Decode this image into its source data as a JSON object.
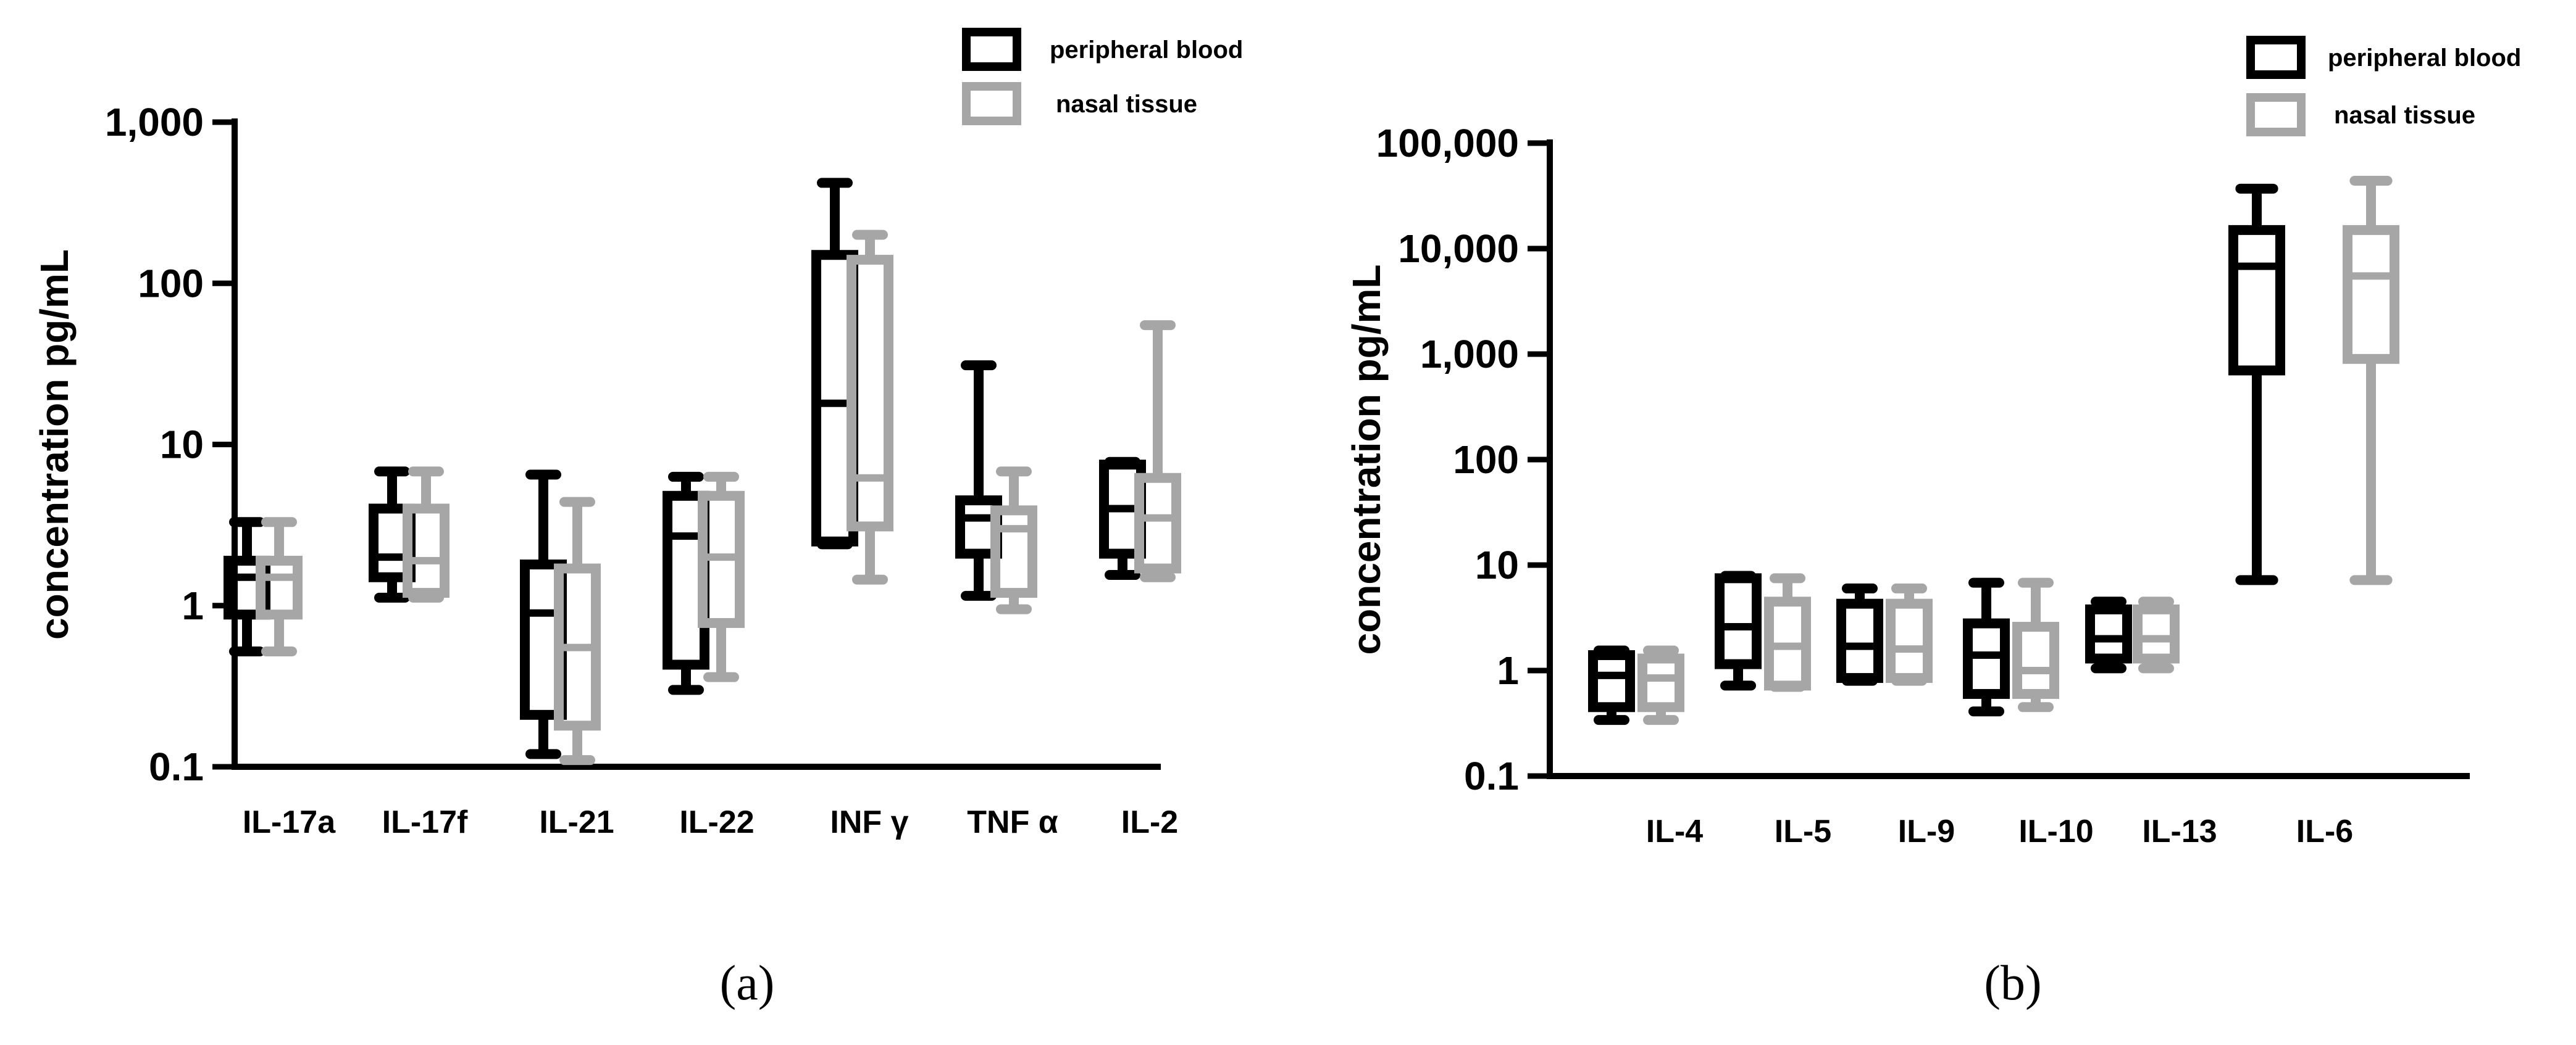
{
  "chart_data": [
    {
      "id": "a",
      "type": "boxplot",
      "yscale": "log",
      "ylim": [
        0.1,
        1000
      ],
      "ylabel": "concentration pg/mL",
      "yticks": [
        "0.1",
        "1",
        "10",
        "100",
        "1,000"
      ],
      "ytick_values": [
        0.1,
        1,
        10,
        100,
        1000
      ],
      "caption": "(a)",
      "legend": [
        {
          "name": "peripheral blood",
          "color": "#000000"
        },
        {
          "name": "nasal tissue",
          "color": "#a6a6a6"
        }
      ],
      "categories": [
        "IL-17a",
        "IL-17f",
        "IL-21",
        "IL-22",
        "INF γ",
        "TNF α",
        "IL-2"
      ],
      "series": [
        {
          "name": "peripheral blood",
          "color": "#000000",
          "boxes": [
            {
              "min": 0.52,
              "q1": 0.88,
              "median": 1.5,
              "q3": 1.9,
              "max": 3.3
            },
            {
              "min": 1.12,
              "q1": 1.5,
              "median": 2.0,
              "q3": 4.0,
              "max": 6.8
            },
            {
              "min": 0.12,
              "q1": 0.21,
              "median": 0.9,
              "q3": 1.8,
              "max": 6.5
            },
            {
              "min": 0.3,
              "q1": 0.43,
              "median": 2.7,
              "q3": 4.8,
              "max": 6.3
            },
            {
              "min": 2.4,
              "q1": 2.5,
              "median": 18,
              "q3": 150,
              "max": 420
            },
            {
              "min": 1.15,
              "q1": 2.1,
              "median": 3.5,
              "q3": 4.5,
              "max": 31
            },
            {
              "min": 1.55,
              "q1": 2.1,
              "median": 4.0,
              "q3": 7.5,
              "max": 7.8
            }
          ]
        },
        {
          "name": "nasal tissue",
          "color": "#a6a6a6",
          "boxes": [
            {
              "min": 0.52,
              "q1": 0.88,
              "median": 1.5,
              "q3": 1.9,
              "max": 3.3
            },
            {
              "min": 1.12,
              "q1": 1.2,
              "median": 1.9,
              "q3": 4.0,
              "max": 6.8
            },
            {
              "min": 0.11,
              "q1": 0.18,
              "median": 0.55,
              "q3": 1.7,
              "max": 4.4
            },
            {
              "min": 0.36,
              "q1": 0.78,
              "median": 2.0,
              "q3": 4.8,
              "max": 6.3
            },
            {
              "min": 1.45,
              "q1": 3.1,
              "median": 6.2,
              "q3": 140,
              "max": 200
            },
            {
              "min": 0.95,
              "q1": 1.2,
              "median": 3.0,
              "q3": 3.9,
              "max": 6.8
            },
            {
              "min": 1.5,
              "q1": 1.7,
              "median": 3.5,
              "q3": 6.2,
              "max": 55
            }
          ]
        }
      ]
    },
    {
      "id": "b",
      "type": "boxplot",
      "yscale": "log",
      "ylim": [
        0.1,
        100000
      ],
      "ylabel": "concentration pg/mL",
      "yticks": [
        "0.1",
        "1",
        "10",
        "100",
        "1,000",
        "10,000",
        "100,000"
      ],
      "ytick_values": [
        0.1,
        1,
        10,
        100,
        1000,
        10000,
        100000
      ],
      "caption": "(b)",
      "legend": [
        {
          "name": "peripheral blood",
          "color": "#000000"
        },
        {
          "name": "nasal tissue",
          "color": "#a6a6a6"
        }
      ],
      "categories": [
        "IL-4",
        "IL-5",
        "IL-9",
        "IL-10",
        "IL-13",
        "IL-6"
      ],
      "series": [
        {
          "name": "peripheral blood",
          "color": "#000000",
          "boxes": [
            {
              "min": 0.34,
              "q1": 0.45,
              "median": 0.9,
              "q3": 1.4,
              "max": 1.55
            },
            {
              "min": 0.72,
              "q1": 1.15,
              "median": 2.6,
              "q3": 7.5,
              "max": 7.9
            },
            {
              "min": 0.8,
              "q1": 0.85,
              "median": 1.7,
              "q3": 4.3,
              "max": 6.0
            },
            {
              "min": 0.41,
              "q1": 0.6,
              "median": 1.4,
              "q3": 2.8,
              "max": 6.8
            },
            {
              "min": 1.05,
              "q1": 1.3,
              "median": 2.0,
              "q3": 3.8,
              "max": 4.5
            },
            {
              "min": 7.2,
              "q1": 700,
              "median": 6800,
              "q3": 15000,
              "max": 37000
            }
          ]
        },
        {
          "name": "nasal tissue",
          "color": "#a6a6a6",
          "boxes": [
            {
              "min": 0.34,
              "q1": 0.45,
              "median": 0.85,
              "q3": 1.3,
              "max": 1.55
            },
            {
              "min": 0.7,
              "q1": 0.72,
              "median": 1.7,
              "q3": 4.5,
              "max": 7.5
            },
            {
              "min": 0.8,
              "q1": 0.85,
              "median": 1.6,
              "q3": 4.3,
              "max": 6.0
            },
            {
              "min": 0.45,
              "q1": 0.6,
              "median": 1.0,
              "q3": 2.6,
              "max": 6.8
            },
            {
              "min": 1.05,
              "q1": 1.3,
              "median": 2.0,
              "q3": 3.8,
              "max": 4.5
            },
            {
              "min": 7.2,
              "q1": 900,
              "median": 5500,
              "q3": 15000,
              "max": 44000
            }
          ]
        }
      ]
    }
  ]
}
